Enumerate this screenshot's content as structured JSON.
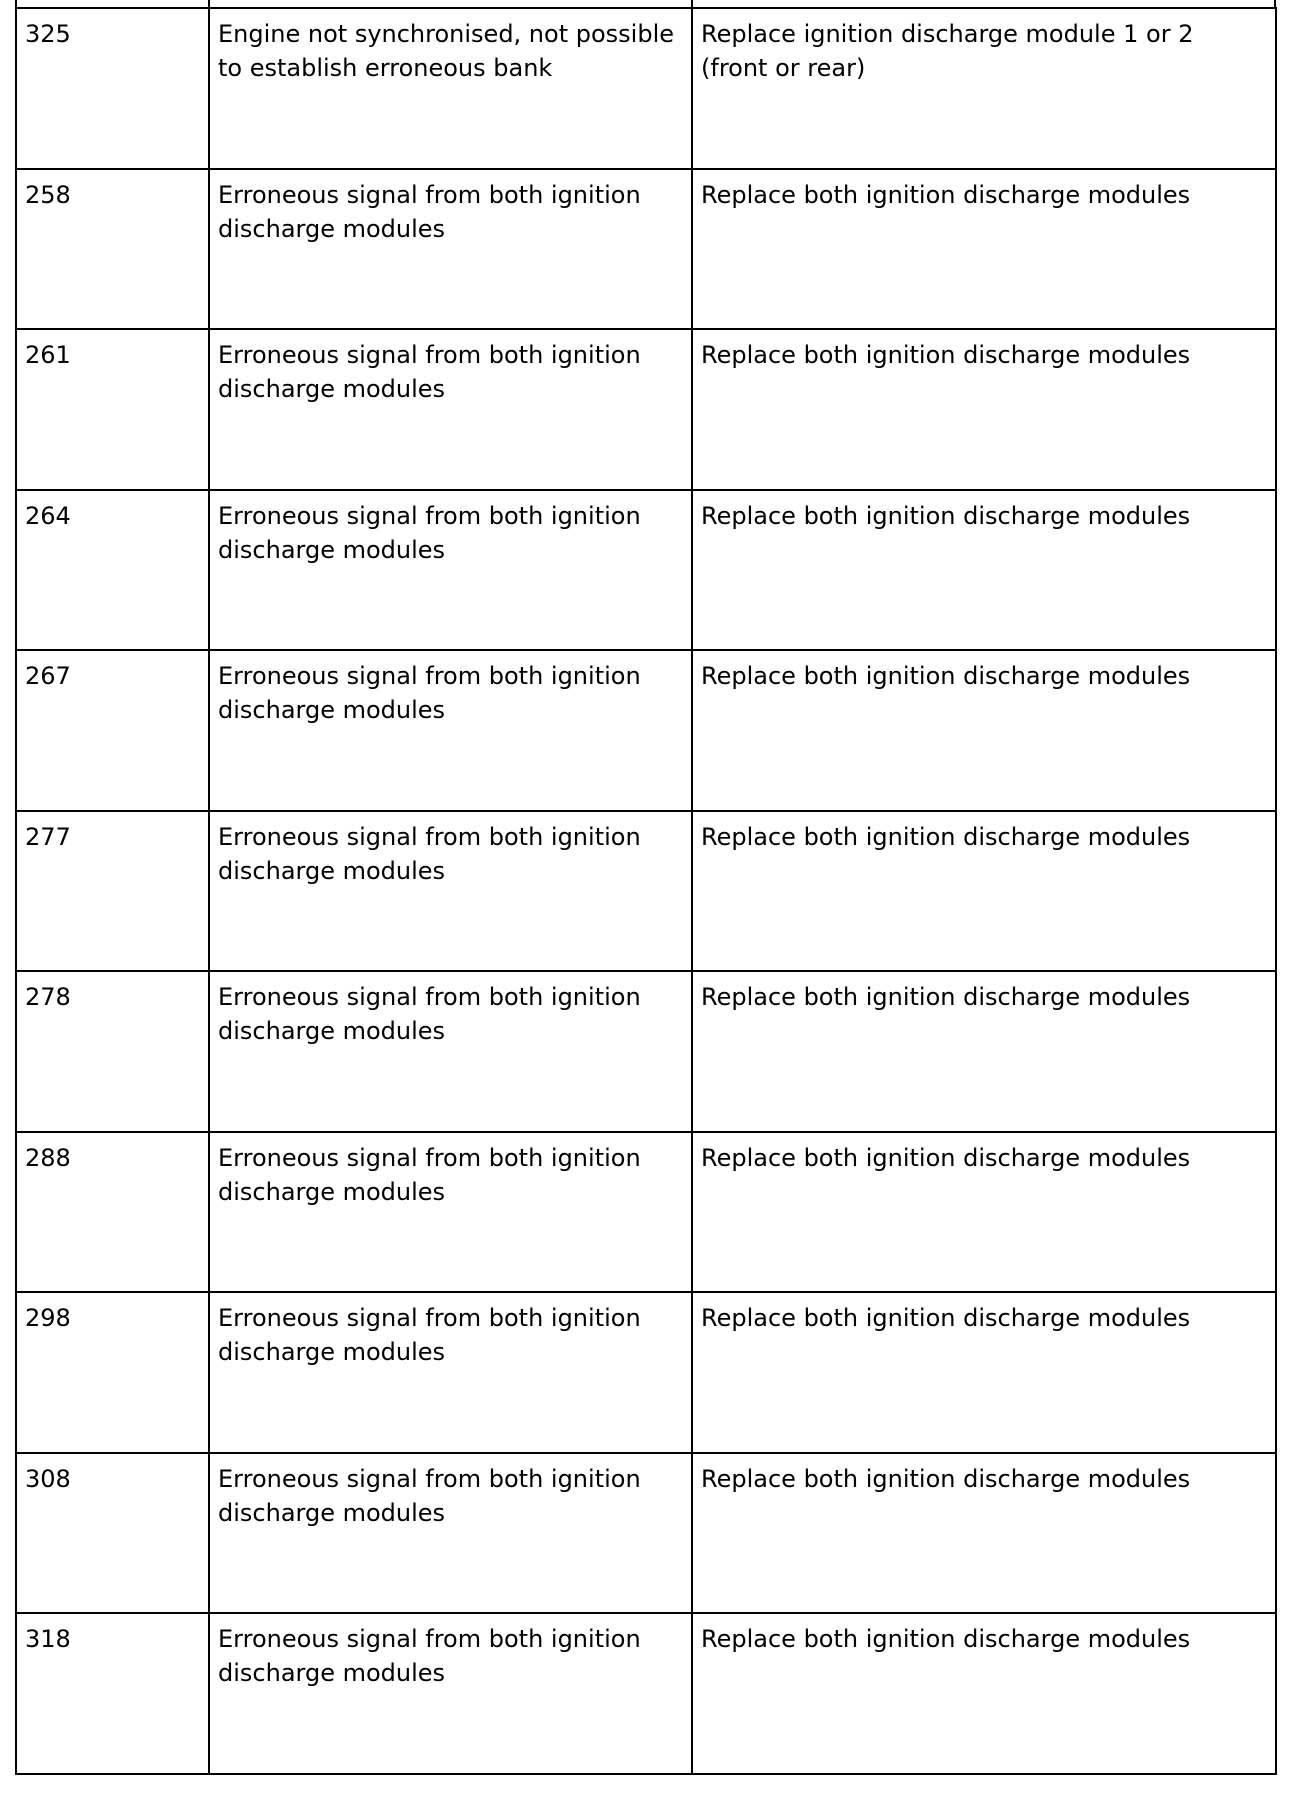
{
  "table": {
    "rows": [
      {
        "code": "325",
        "fault": "Engine not synchronised, not possible to establish erroneous bank",
        "action": "Replace ignition discharge module 1 or 2 (front or rear)"
      },
      {
        "code": "258",
        "fault": "Erroneous signal from both ignition discharge modules",
        "action": "Replace both ignition discharge modules"
      },
      {
        "code": "261",
        "fault": "Erroneous signal from both ignition discharge modules",
        "action": "Replace both ignition discharge modules"
      },
      {
        "code": "264",
        "fault": "Erroneous signal from both ignition discharge modules",
        "action": "Replace both ignition discharge modules"
      },
      {
        "code": "267",
        "fault": "Erroneous signal from both ignition discharge modules",
        "action": "Replace both ignition discharge modules"
      },
      {
        "code": "277",
        "fault": "Erroneous signal from both ignition discharge modules",
        "action": "Replace both ignition discharge modules"
      },
      {
        "code": "278",
        "fault": "Erroneous signal from both ignition discharge modules",
        "action": "Replace both ignition discharge modules"
      },
      {
        "code": "288",
        "fault": "Erroneous signal from both ignition discharge modules",
        "action": "Replace both ignition discharge modules"
      },
      {
        "code": "298",
        "fault": "Erroneous signal from both ignition discharge modules",
        "action": "Replace both ignition discharge modules"
      },
      {
        "code": "308",
        "fault": "Erroneous signal from both ignition discharge modules",
        "action": "Replace both ignition discharge modules"
      },
      {
        "code": "318",
        "fault": "Erroneous signal from both ignition discharge modules",
        "action": "Replace both ignition discharge modules"
      }
    ]
  }
}
